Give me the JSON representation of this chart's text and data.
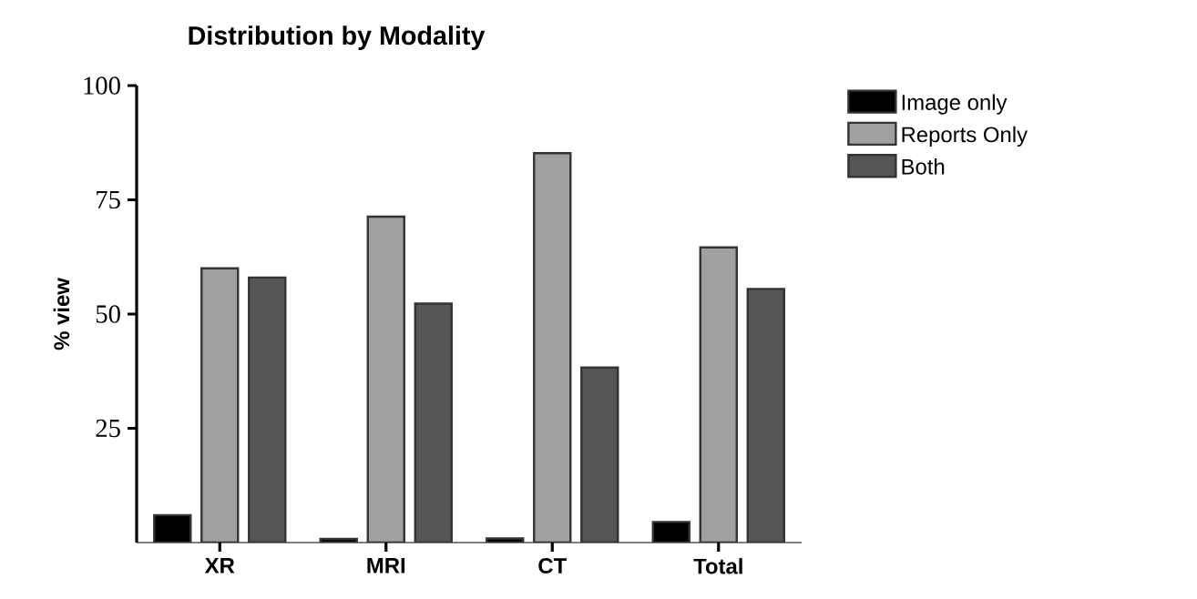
{
  "chart_data": {
    "type": "bar",
    "title": "Distribution by Modality",
    "ylabel": "% view",
    "categories": [
      "XR",
      "MRI",
      "CT",
      "Total"
    ],
    "series": [
      {
        "name": "Image only",
        "color": "#000000",
        "values": [
          6.0,
          0.8,
          0.9,
          4.5
        ]
      },
      {
        "name": "Reports Only",
        "color": "#a0a0a0",
        "values": [
          60.0,
          71.3,
          85.2,
          64.6
        ]
      },
      {
        "name": "Both",
        "color": "#555555",
        "values": [
          58.0,
          52.3,
          38.3,
          55.5
        ]
      }
    ],
    "ylim": [
      0,
      100
    ],
    "yticks": [
      25,
      50,
      75,
      100
    ],
    "grid": false,
    "legend": "right"
  }
}
